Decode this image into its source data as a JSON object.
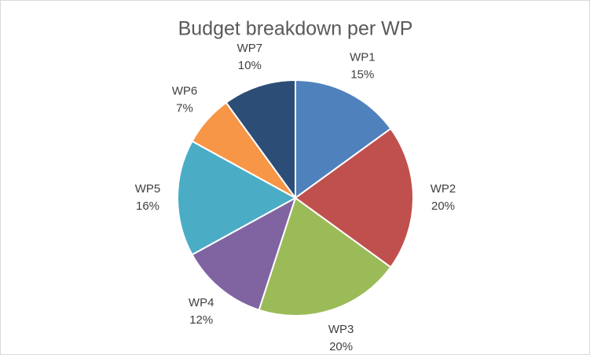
{
  "chart_data": {
    "type": "pie",
    "title": "Budget breakdown per WP",
    "categories": [
      "WP1",
      "WP2",
      "WP3",
      "WP4",
      "WP5",
      "WP6",
      "WP7"
    ],
    "values": [
      15,
      20,
      20,
      12,
      16,
      7,
      10
    ],
    "value_labels": [
      "15%",
      "20%",
      "20%",
      "12%",
      "16%",
      "7%",
      "10%"
    ],
    "colors": [
      "#4f81bd",
      "#c0504d",
      "#9bbb59",
      "#8064a2",
      "#4bacc6",
      "#f79646",
      "#2c4d75"
    ]
  }
}
